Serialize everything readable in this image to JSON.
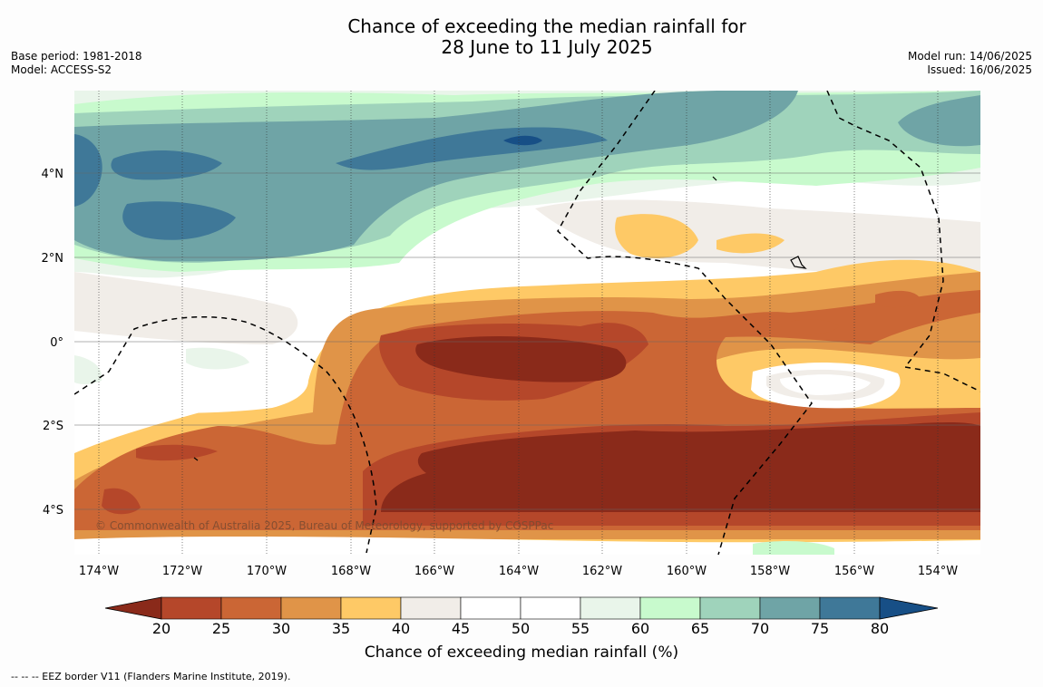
{
  "title": {
    "line1": "Chance of exceeding the median rainfall for",
    "line2": "28 June to 11 July 2025"
  },
  "meta": {
    "base_period": "Base period: 1981-2018",
    "model": "Model: ACCESS-S2",
    "model_run": "Model run: 14/06/2025",
    "issued": "Issued: 16/06/2025"
  },
  "map": {
    "copyright": "© Commonwealth of Australia 2025, Bureau of Meteorology, supported by COSPPac",
    "lon_labels": [
      "174°W",
      "172°W",
      "170°W",
      "168°W",
      "166°W",
      "164°W",
      "162°W",
      "160°W",
      "158°W",
      "156°W",
      "154°W"
    ],
    "lat_labels": [
      "4°N",
      "2°N",
      "0°",
      "2°S",
      "4°S"
    ]
  },
  "colorbar": {
    "ticks": [
      "20",
      "25",
      "30",
      "35",
      "40",
      "45",
      "50",
      "55",
      "60",
      "65",
      "70",
      "75",
      "80"
    ],
    "colors": [
      "#8a2a1a",
      "#b5472a",
      "#cb6635",
      "#e09448",
      "#fec966",
      "#f1ede8",
      "#ffffff",
      "#ffffff",
      "#e9f5ea",
      "#c8facd",
      "#9fd3bb",
      "#6fa4a6",
      "#3f7898",
      "#174f86"
    ],
    "label": "Chance of exceeding median rainfall (%)"
  },
  "footer": "--  --  -- EEZ border V11 (Flanders Marine Institute, 2019)."
}
